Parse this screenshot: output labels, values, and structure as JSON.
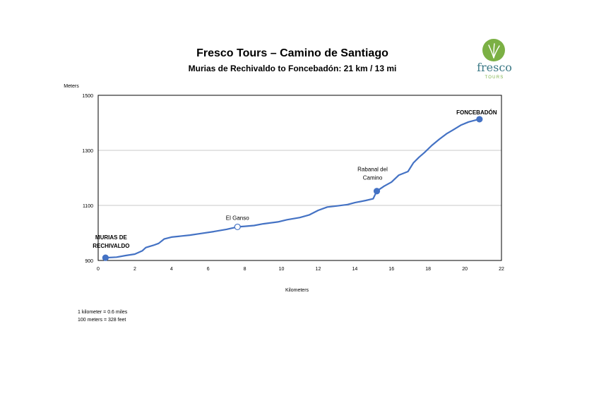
{
  "header": {
    "title": "Fresco Tours – Camino de Santiago",
    "subtitle": "Murias de Rechivaldo to Foncebadón: 21 km / 13 mi"
  },
  "logo": {
    "word": "fresco",
    "sub": "TOURS",
    "colors": {
      "green": "#7bb044",
      "teal": "#3d7a87"
    }
  },
  "notes": [
    "1 kilometer = 0.6 miles",
    "100 meters = 328 feet"
  ],
  "chart_data": {
    "type": "line",
    "title": "",
    "xlabel": "Kilometers",
    "ylabel": "Meters",
    "xlim": [
      0,
      22
    ],
    "ylim": [
      900,
      1500
    ],
    "xticks": [
      0,
      2,
      4,
      6,
      8,
      10,
      12,
      14,
      16,
      18,
      20,
      22
    ],
    "yticks": [
      900,
      1100,
      1300,
      1500
    ],
    "grid": "horizontal",
    "line_color": "#4472c4",
    "series": [
      {
        "x": [
          0.4,
          1.0,
          1.5,
          2.0,
          2.4,
          2.6,
          3.0,
          3.3,
          3.6,
          4.0,
          5.0,
          5.6,
          6.3,
          7.0,
          7.6,
          8.0,
          8.5,
          9.0,
          9.8,
          10.3,
          11.0,
          11.5,
          12.0,
          12.5,
          13.0,
          13.6,
          14.0,
          14.6,
          15.0,
          15.2,
          15.6,
          16.0,
          16.4,
          16.9,
          17.2,
          17.5,
          17.8,
          18.2,
          18.6,
          19.0,
          19.4,
          19.8,
          20.2,
          20.6,
          20.8
        ],
        "y": [
          910,
          912,
          918,
          923,
          935,
          947,
          955,
          962,
          978,
          985,
          992,
          998,
          1005,
          1013,
          1022,
          1024,
          1027,
          1033,
          1040,
          1048,
          1056,
          1065,
          1082,
          1094,
          1098,
          1103,
          1110,
          1118,
          1124,
          1152,
          1170,
          1185,
          1210,
          1223,
          1255,
          1275,
          1292,
          1318,
          1340,
          1360,
          1376,
          1392,
          1403,
          1410,
          1413
        ]
      }
    ],
    "markers": [
      {
        "label": "MURIAS DE RECHIVALDO",
        "lines": [
          "MURIAS DE",
          "RECHIVALDO"
        ],
        "x": 0.4,
        "y": 910,
        "style": "filled",
        "bold": true,
        "anchor": "middle",
        "dx": 8,
        "dy": -26
      },
      {
        "label": "El Ganso",
        "lines": [
          "El Ganso"
        ],
        "x": 7.6,
        "y": 1022,
        "style": "open",
        "bold": false,
        "anchor": "middle",
        "dx": 0,
        "dy": -10
      },
      {
        "label": "Rabanal del Camino",
        "lines": [
          "Rabanal del",
          "Camino"
        ],
        "x": 15.2,
        "y": 1152,
        "style": "filled",
        "bold": false,
        "anchor": "middle",
        "dx": -6,
        "dy": -28
      },
      {
        "label": "FONCEBADÓN",
        "lines": [
          "FONCEBADÓN"
        ],
        "x": 20.8,
        "y": 1413,
        "style": "filled",
        "bold": true,
        "anchor": "middle",
        "dx": -4,
        "dy": -7
      }
    ]
  }
}
